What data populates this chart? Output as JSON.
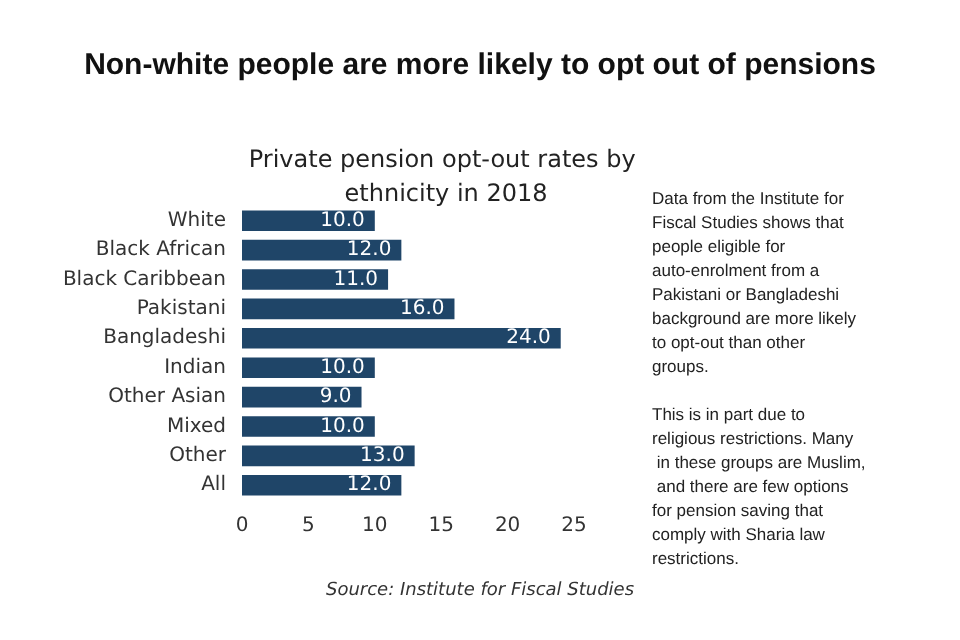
{
  "chart_data": {
    "type": "bar",
    "orientation": "horizontal",
    "title": "Non-white people are more likely to opt out of pensions",
    "subtitle": "Private pension opt-out rates by ethnicity in 2018",
    "categories": [
      "White",
      "Black African",
      "Black Caribbean",
      "Pakistani",
      "Bangladeshi",
      "Indian",
      "Other Asian",
      "Mixed",
      "Other",
      "All"
    ],
    "values": [
      10,
      12,
      11,
      16,
      24,
      10,
      9,
      10,
      13,
      12
    ],
    "value_labels": [
      "10.0",
      "12.0",
      "11.0",
      "16.0",
      "24.0",
      "10.0",
      "9.0",
      "10.0",
      "13.0",
      "12.0"
    ],
    "color": "#1f4568",
    "xlim": [
      0,
      25
    ],
    "xticks": [
      0,
      5,
      10,
      15,
      20,
      25
    ],
    "grid": false,
    "annotations": [
      "Data from the Institute for Fiscal Studies shows that people eligible for auto-enrolment from a Pakistani or Bangladeshi background are more likely to opt-out than other groups.",
      "This is in part due to religious restrictions. Many in these groups are Muslim, and there are few options for pension saving that comply with Sharia law restrictions.",
      "Source: Institute for Fiscal Studies"
    ]
  }
}
